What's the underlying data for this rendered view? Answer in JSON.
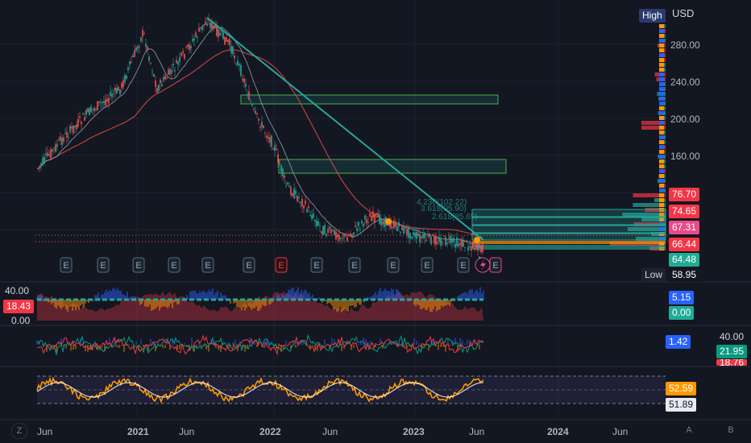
{
  "header": {
    "high_label": "High",
    "currency": "USD"
  },
  "price_axis": {
    "ticks": [
      "280.00",
      "240.00",
      "200.00",
      "160.00"
    ]
  },
  "price_tags": [
    {
      "text": "76.70",
      "bg": "#f23645",
      "fg": "#ffffff"
    },
    {
      "text": "74.65",
      "bg": "#f23645",
      "fg": "#ffffff"
    },
    {
      "text": "67.31",
      "bg": "#e84a8a",
      "fg": "#ffffff"
    },
    {
      "text": "66.44",
      "bg": "#f23645",
      "fg": "#ffffff"
    },
    {
      "text": "64.48",
      "bg": "#22ab94",
      "fg": "#ffffff"
    }
  ],
  "low": {
    "label": "Low",
    "value": "58.95"
  },
  "earnings_marker": "E",
  "fib_labels": [
    "4.236(102.22)",
    "3.618(95.90)",
    "2.618(85.69)"
  ],
  "indicator1": {
    "top": "40.00",
    "bottom": "0.00",
    "current": "18.43",
    "tag_a": "5.15",
    "tag_b": "0.00"
  },
  "indicator2": {
    "tag": "1.42",
    "right_top": "40.00",
    "right_a": "21.95",
    "right_b": "18.76"
  },
  "indicator3": {
    "tag_a": "52.59",
    "tag_b": "51.89"
  },
  "time_axis": [
    "Jun",
    "2021",
    "Jun",
    "2022",
    "Jun",
    "2023",
    "Jun",
    "2024",
    "Jun"
  ],
  "corner_buttons": {
    "left": "Z",
    "a": "A",
    "b": "B"
  },
  "colors": {
    "up": "#26a69a",
    "down": "#ef5350",
    "trend": "#26a69a",
    "ma_slow": "#e84a4a",
    "ma_fast": "#9aa0aa",
    "rsi": "#ff9800"
  }
}
